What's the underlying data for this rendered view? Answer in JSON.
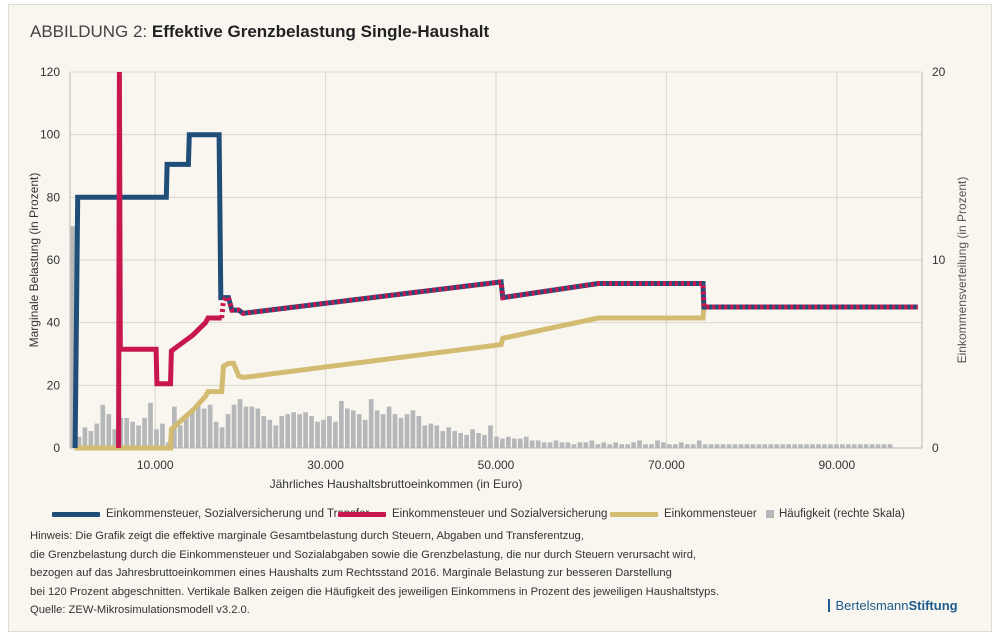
{
  "header": {
    "prefix": "ABBILDUNG 2:",
    "title": "Effektive Grenzbelastung Single-Haushalt"
  },
  "chart_data": {
    "type": "line",
    "xlabel": "Jährliches Haushaltsbruttoeinkommen (in Euro)",
    "ylabel_left": "Marginale Belastung (in Prozent)",
    "ylabel_right": "Einkommensverteilung (in Prozent)",
    "xlim": [
      0,
      100000
    ],
    "ylim_left": [
      0,
      120
    ],
    "ylim_right": [
      0,
      20
    ],
    "x_ticks": [
      10000,
      30000,
      50000,
      70000,
      90000
    ],
    "x_tick_labels": [
      "10.000",
      "30.000",
      "50.000",
      "70.000",
      "90.000"
    ],
    "y_left_ticks": [
      0,
      20,
      40,
      60,
      80,
      100,
      120
    ],
    "y_left_tick_labels": [
      "0",
      "20",
      "40",
      "60",
      "80",
      "100",
      "120"
    ],
    "y_right_ticks": [
      0,
      10,
      20
    ],
    "y_right_tick_labels": [
      "0",
      "10",
      "20"
    ],
    "series": [
      {
        "name": "Einkommensteuer, Sozialversicherung und Transfer",
        "color": "#1f4e79",
        "points": [
          [
            600,
            0
          ],
          [
            900,
            80
          ],
          [
            11300,
            80
          ],
          [
            11400,
            90.5
          ],
          [
            13900,
            90.5
          ],
          [
            14000,
            100
          ],
          [
            17500,
            100
          ],
          [
            17700,
            48
          ],
          [
            18200,
            48
          ],
          [
            18600,
            48
          ],
          [
            19000,
            44
          ],
          [
            19800,
            44
          ],
          [
            20300,
            43
          ],
          [
            50600,
            53
          ],
          [
            50800,
            48
          ],
          [
            62000,
            52.5
          ],
          [
            74300,
            52.5
          ],
          [
            74400,
            45
          ],
          [
            99500,
            45
          ]
        ]
      },
      {
        "name": "Einkommensteuer und Sozialversicherung",
        "color": "#c8174f",
        "points": [
          [
            5700,
            0
          ],
          [
            5800,
            120
          ],
          [
            5900,
            31.5
          ],
          [
            10100,
            31.5
          ],
          [
            10200,
            20.5
          ],
          [
            11800,
            20.5
          ],
          [
            11900,
            31
          ],
          [
            14400,
            36
          ],
          [
            15900,
            40
          ],
          [
            16200,
            41.5
          ],
          [
            17800,
            41.5
          ],
          [
            18000,
            47
          ],
          [
            18300,
            48
          ],
          [
            18600,
            48
          ],
          [
            19000,
            44
          ],
          [
            19800,
            44
          ],
          [
            20300,
            43
          ],
          [
            50600,
            53
          ],
          [
            50800,
            48
          ],
          [
            62000,
            52.5
          ],
          [
            74300,
            52.5
          ],
          [
            74400,
            45
          ],
          [
            99500,
            45
          ]
        ]
      },
      {
        "name": "Einkommensteuer",
        "color": "#d3bb72",
        "points": [
          [
            500,
            0
          ],
          [
            11800,
            0
          ],
          [
            11900,
            6
          ],
          [
            14400,
            12
          ],
          [
            15900,
            16.5
          ],
          [
            16200,
            18
          ],
          [
            17800,
            18
          ],
          [
            18000,
            26
          ],
          [
            18600,
            27
          ],
          [
            19200,
            27
          ],
          [
            19800,
            23
          ],
          [
            20300,
            22.5
          ],
          [
            50600,
            33
          ],
          [
            50800,
            35
          ],
          [
            62000,
            41.5
          ],
          [
            74300,
            41.5
          ],
          [
            74400,
            45
          ],
          [
            99500,
            45
          ]
        ]
      },
      {
        "name": "Häufigkeit (rechte Skala)",
        "axis": "right",
        "type": "bar",
        "color": "#b5b7b9",
        "bin_width": 700,
        "x_start": 0,
        "values": [
          11.8,
          0.6,
          1.1,
          0.9,
          1.3,
          2.3,
          1.8,
          1.0,
          1.6,
          1.6,
          1.4,
          1.2,
          1.6,
          2.4,
          1.0,
          1.3,
          0.3,
          2.2,
          1.2,
          1.8,
          2.1,
          2.4,
          2.1,
          2.3,
          1.4,
          1.1,
          1.8,
          2.3,
          2.6,
          2.2,
          2.2,
          2.1,
          1.7,
          1.5,
          1.2,
          1.7,
          1.8,
          1.9,
          1.8,
          1.9,
          1.7,
          1.4,
          1.5,
          1.7,
          1.4,
          2.5,
          2.1,
          2.0,
          1.8,
          1.5,
          2.6,
          2.0,
          1.8,
          2.2,
          1.8,
          1.6,
          1.8,
          2.0,
          1.7,
          1.2,
          1.3,
          1.2,
          0.9,
          1.1,
          0.9,
          0.8,
          0.7,
          1.0,
          0.8,
          0.7,
          1.2,
          0.6,
          0.5,
          0.6,
          0.5,
          0.5,
          0.6,
          0.4,
          0.4,
          0.3,
          0.3,
          0.4,
          0.3,
          0.3,
          0.2,
          0.3,
          0.3,
          0.4,
          0.2,
          0.3,
          0.2,
          0.3,
          0.2,
          0.2,
          0.3,
          0.4,
          0.2,
          0.2,
          0.4,
          0.3,
          0.2,
          0.2,
          0.3,
          0.2,
          0.2,
          0.4,
          0.2,
          0.2,
          0.2,
          0.2,
          0.2,
          0.2,
          0.2,
          0.2,
          0.2,
          0.2,
          0.2,
          0.2,
          0.2,
          0.2,
          0.2,
          0.2,
          0.2,
          0.2,
          0.2,
          0.2,
          0.2,
          0.2,
          0.2,
          0.2,
          0.2,
          0.2,
          0.2,
          0.2,
          0.2,
          0.2,
          0.2,
          0.2
        ]
      }
    ]
  },
  "note_lines": [
    "Hinweis: Die Grafik zeigt die effektive marginale Gesamtbelastung durch Steuern, Abgaben und Transferentzug,",
    "die Grenzbelastung durch die Einkommensteuer und Sozialabgaben sowie die Grenzbelastung, die nur durch Steuern verursacht wird,",
    "bezogen auf das Jahresbruttoeinkommen eines Haushalts zum Rechtsstand 2016. Marginale Belastung zur besseren Darstellung",
    "bei 120 Prozent abgeschnitten. Vertikale Balken zeigen die Häufigkeit des jeweiligen Einkommens in Prozent des jeweiligen Haushaltstyps.",
    "Quelle: ZEW-Mikrosimulationsmodell v3.2.0."
  ],
  "brand": {
    "name_regular": "Bertelsmann",
    "name_bold": "Stiftung"
  }
}
